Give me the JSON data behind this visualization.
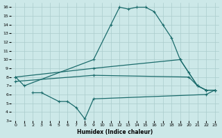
{
  "xlabel": "Humidex (Indice chaleur)",
  "xlim": [
    -0.5,
    23.5
  ],
  "ylim": [
    3,
    16.5
  ],
  "xtick_labels": [
    "0",
    "1",
    "2",
    "3",
    "4",
    "5",
    "6",
    "7",
    "8",
    "9",
    "10",
    "11",
    "12",
    "13",
    "14",
    "15",
    "16",
    "17",
    "18",
    "19",
    "20",
    "21",
    "22",
    "23"
  ],
  "xtick_vals": [
    0,
    1,
    2,
    3,
    4,
    5,
    6,
    7,
    8,
    9,
    10,
    11,
    12,
    13,
    14,
    15,
    16,
    17,
    18,
    19,
    20,
    21,
    22,
    23
  ],
  "ytick_vals": [
    3,
    4,
    5,
    6,
    7,
    8,
    9,
    10,
    11,
    12,
    13,
    14,
    15,
    16
  ],
  "background_color": "#cce8e8",
  "line_color": "#1a6b6b",
  "grid_color": "#aacccc",
  "line1_x": [
    0,
    1,
    9,
    11,
    12,
    13,
    14,
    15,
    16,
    17,
    18,
    19,
    21,
    22,
    23
  ],
  "line1_y": [
    8.0,
    7.0,
    10.0,
    14.0,
    16.0,
    15.8,
    16.0,
    16.0,
    15.5,
    14.0,
    12.5,
    10.0,
    7.0,
    6.5,
    6.5
  ],
  "line2_x": [
    0,
    9,
    19,
    20,
    21,
    22,
    23
  ],
  "line2_y": [
    8.0,
    9.0,
    10.0,
    8.5,
    7.0,
    6.5,
    6.5
  ],
  "line3_x": [
    0,
    9,
    20,
    21,
    22,
    23
  ],
  "line3_y": [
    7.5,
    8.2,
    8.0,
    7.0,
    6.5,
    6.5
  ],
  "line4_x": [
    2,
    3,
    5,
    6,
    7,
    8,
    9,
    22,
    23
  ],
  "line4_y": [
    6.2,
    6.2,
    5.2,
    5.2,
    4.5,
    3.2,
    5.5,
    6.0,
    6.5
  ]
}
